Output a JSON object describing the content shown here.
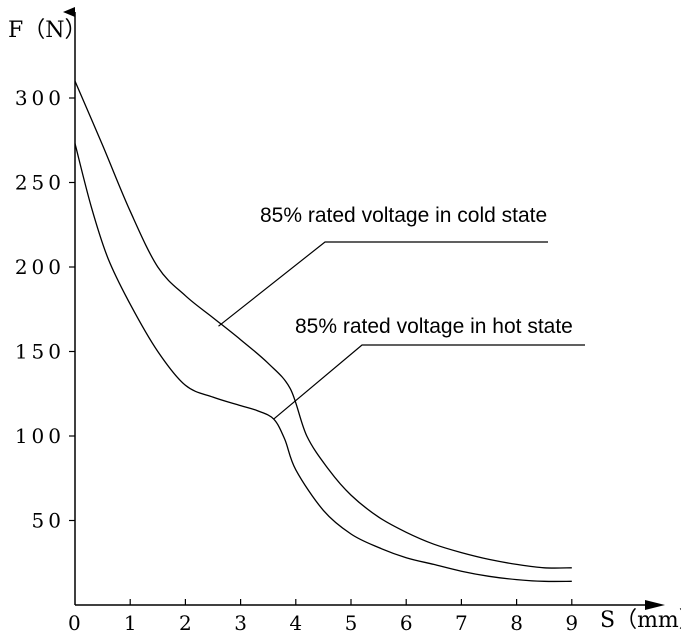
{
  "chart_data": {
    "type": "line",
    "title": "",
    "xlabel": "S（mm）",
    "ylabel": "F（N）",
    "xlim": [
      0,
      10
    ],
    "ylim": [
      0,
      340
    ],
    "x_ticks": [
      "0",
      "1",
      "2",
      "3",
      "4",
      "5",
      "6",
      "7",
      "8",
      "9"
    ],
    "y_ticks": [
      "50",
      "100",
      "150",
      "200",
      "250",
      "300"
    ],
    "grid": false,
    "series": [
      {
        "name": "85% rated voltage in cold state",
        "x": [
          0,
          0.5,
          1,
          1.5,
          2,
          2.5,
          3,
          3.5,
          3.9,
          4.2,
          4.6,
          5,
          5.5,
          6,
          6.5,
          7,
          7.5,
          8,
          8.5,
          9
        ],
        "y": [
          310,
          272,
          233,
          200,
          183,
          170,
          157,
          143,
          128,
          100,
          80,
          65,
          52,
          43,
          36,
          31,
          27,
          24,
          22,
          22
        ]
      },
      {
        "name": "85% rated voltage in hot state",
        "x": [
          0,
          0.3,
          0.6,
          1,
          1.5,
          2,
          2.5,
          3,
          3.3,
          3.6,
          3.8,
          4,
          4.5,
          5,
          5.5,
          6,
          6.5,
          7,
          7.5,
          8,
          8.5,
          9
        ],
        "y": [
          273,
          235,
          205,
          178,
          150,
          130,
          123,
          118,
          115,
          110,
          98,
          80,
          56,
          42,
          34,
          28,
          24,
          20,
          17,
          15,
          14,
          14
        ]
      }
    ],
    "annotations": [
      {
        "text": "85% rated voltage in cold state",
        "points_to": [
          2.6,
          165
        ]
      },
      {
        "text": "85% rated voltage in hot state",
        "points_to": [
          3.6,
          110
        ]
      }
    ]
  }
}
